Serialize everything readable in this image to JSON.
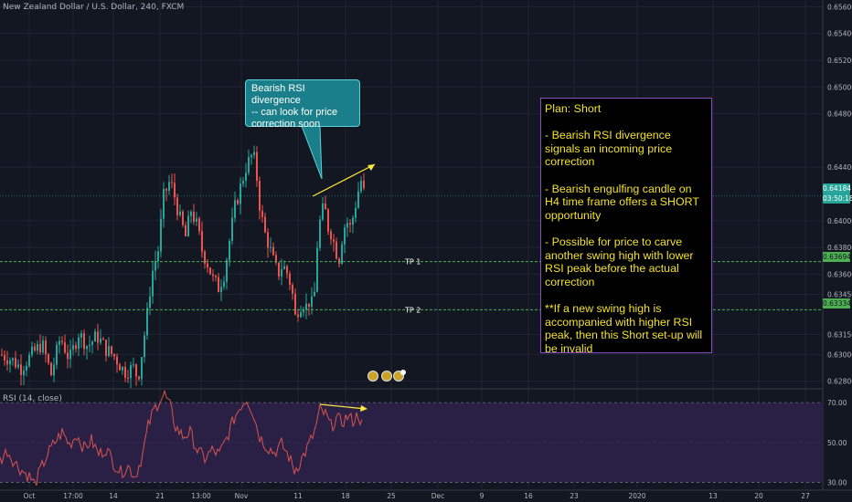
{
  "chart_title": "New Zealand Dollar / U.S. Dollar, 240, FXCM",
  "callout_text": [
    "Bearish RSI divergence",
    "-- can look for price",
    "correction soon"
  ],
  "plan_lines": [
    "Plan: Short",
    "",
    "- Bearish RSI divergence signals an incoming price correction",
    "",
    "- Bearish engulfing candle on H4 time frame offers a SHORT opportunity",
    "",
    "- Possible for price to carve another swing high with lower RSI peak before the actual correction",
    "",
    "**If a new swing high is accompanied with higher RSI peak, then this Short set-up will be invalid"
  ],
  "colors": {
    "background": "#131722",
    "up": "#26a69a",
    "down": "#ef5350",
    "rsi_line": "#d9534f",
    "rsi_band": "#2a2046",
    "tp_line": "#4caf50",
    "trend_arrow": "#ffeb3b",
    "current_price_bg": "#26a69a"
  },
  "chart_data": [
    {
      "type": "candlestick",
      "title": "New Zealand Dollar / U.S. Dollar, 240, FXCM",
      "ylim": [
        0.6275,
        0.6565
      ],
      "y_ticks": [
        "0.65600",
        "0.65400",
        "0.65200",
        "0.65000",
        "0.64800",
        "0.64400",
        "0.64000",
        "0.63800",
        "0.63600",
        "0.63450",
        "0.63150",
        "0.63000",
        "0.62800"
      ],
      "x_ticks": [
        "Oct",
        "17:00",
        "14",
        "21",
        "13:00",
        "Nov",
        "11",
        "18",
        "25",
        "Dec",
        "9",
        "16",
        "23",
        "2020",
        "13",
        "20",
        "27"
      ],
      "tp_levels": [
        {
          "label": "TP 1",
          "value": 0.63694,
          "price_label": "0.63694"
        },
        {
          "label": "TP 2",
          "value": 0.63334,
          "price_label": "0.63334"
        }
      ],
      "current_price": {
        "value": 0.64184,
        "label": "0.64184",
        "countdown": "03:50:18"
      },
      "price_path": [
        [
          0,
          0.63
        ],
        [
          12,
          0.6296
        ],
        [
          22,
          0.629
        ],
        [
          35,
          0.6301
        ],
        [
          45,
          0.6308
        ],
        [
          55,
          0.6285
        ],
        [
          65,
          0.6313
        ],
        [
          75,
          0.6296
        ],
        [
          85,
          0.6316
        ],
        [
          95,
          0.6306
        ],
        [
          105,
          0.6314
        ],
        [
          115,
          0.6304
        ],
        [
          125,
          0.6298
        ],
        [
          135,
          0.6287
        ],
        [
          145,
          0.629
        ],
        [
          150,
          0.6282
        ],
        [
          155,
          0.6305
        ],
        [
          160,
          0.633
        ],
        [
          165,
          0.636
        ],
        [
          172,
          0.6378
        ],
        [
          178,
          0.6418
        ],
        [
          185,
          0.643
        ],
        [
          190,
          0.6418
        ],
        [
          196,
          0.6401
        ],
        [
          202,
          0.6388
        ],
        [
          208,
          0.6408
        ],
        [
          215,
          0.6395
        ],
        [
          220,
          0.6378
        ],
        [
          226,
          0.6368
        ],
        [
          232,
          0.6356
        ],
        [
          238,
          0.635
        ],
        [
          244,
          0.636
        ],
        [
          250,
          0.6385
        ],
        [
          256,
          0.641
        ],
        [
          262,
          0.6425
        ],
        [
          268,
          0.644
        ],
        [
          274,
          0.6448
        ],
        [
          278,
          0.6445
        ],
        [
          283,
          0.6412
        ],
        [
          288,
          0.6392
        ],
        [
          293,
          0.6382
        ],
        [
          298,
          0.637
        ],
        [
          303,
          0.636
        ],
        [
          308,
          0.6367
        ],
        [
          313,
          0.6361
        ],
        [
          318,
          0.635
        ],
        [
          322,
          0.6328
        ],
        [
          326,
          0.6336
        ],
        [
          330,
          0.6339
        ],
        [
          334,
          0.6336
        ],
        [
          338,
          0.6341
        ],
        [
          342,
          0.6334
        ],
        [
          346,
          0.6382
        ],
        [
          350,
          0.6405
        ],
        [
          354,
          0.641
        ],
        [
          358,
          0.6395
        ],
        [
          362,
          0.639
        ],
        [
          366,
          0.6378
        ],
        [
          370,
          0.6372
        ],
        [
          374,
          0.6392
        ],
        [
          378,
          0.64
        ],
        [
          382,
          0.6395
        ],
        [
          386,
          0.6405
        ],
        [
          390,
          0.642
        ],
        [
          394,
          0.643
        ],
        [
          398,
          0.6418
        ]
      ]
    },
    {
      "type": "line",
      "title": "RSI (14, close)",
      "ylim": [
        27,
        76
      ],
      "y_ticks": [
        "70.00",
        "50.00",
        "30.00"
      ],
      "band": [
        30,
        70
      ],
      "values": [
        [
          0,
          41
        ],
        [
          8,
          46
        ],
        [
          16,
          40
        ],
        [
          24,
          36
        ],
        [
          32,
          33
        ],
        [
          38,
          29
        ],
        [
          44,
          36
        ],
        [
          52,
          44
        ],
        [
          60,
          50
        ],
        [
          68,
          55
        ],
        [
          76,
          49
        ],
        [
          84,
          54
        ],
        [
          92,
          47
        ],
        [
          100,
          51
        ],
        [
          108,
          44
        ],
        [
          116,
          47
        ],
        [
          124,
          40
        ],
        [
          132,
          35
        ],
        [
          140,
          38
        ],
        [
          148,
          33
        ],
        [
          156,
          44
        ],
        [
          162,
          58
        ],
        [
          168,
          66
        ],
        [
          174,
          71
        ],
        [
          180,
          74
        ],
        [
          186,
          68
        ],
        [
          192,
          58
        ],
        [
          200,
          53
        ],
        [
          208,
          55
        ],
        [
          216,
          46
        ],
        [
          224,
          42
        ],
        [
          232,
          46
        ],
        [
          240,
          44
        ],
        [
          248,
          52
        ],
        [
          256,
          62
        ],
        [
          264,
          69
        ],
        [
          270,
          72
        ],
        [
          276,
          66
        ],
        [
          284,
          53
        ],
        [
          292,
          48
        ],
        [
          300,
          45
        ],
        [
          308,
          49
        ],
        [
          316,
          43
        ],
        [
          322,
          36
        ],
        [
          328,
          40
        ],
        [
          336,
          47
        ],
        [
          344,
          55
        ],
        [
          350,
          66
        ],
        [
          356,
          64
        ],
        [
          362,
          58
        ],
        [
          368,
          62
        ],
        [
          374,
          60
        ],
        [
          380,
          63
        ],
        [
          386,
          61
        ],
        [
          392,
          64
        ],
        [
          397,
          58
        ]
      ]
    }
  ]
}
